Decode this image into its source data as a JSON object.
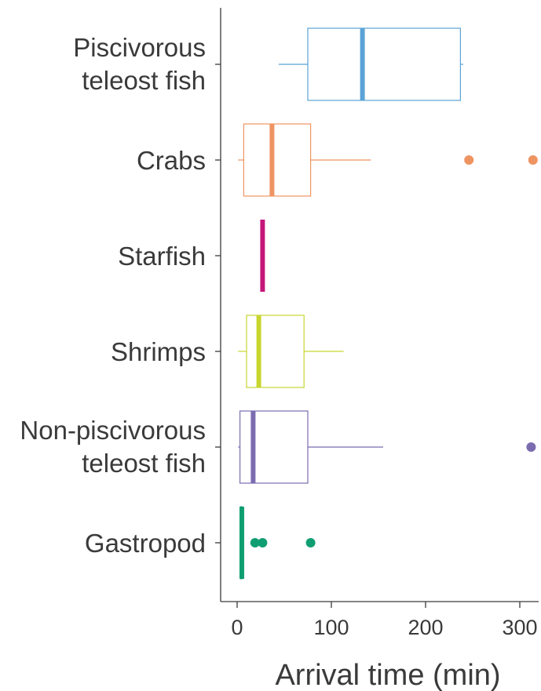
{
  "chart_data": {
    "type": "box",
    "orientation": "horizontal",
    "xlabel": "Arrival time (min)",
    "xlim": [
      -12,
      322
    ],
    "xticks": [
      0,
      100,
      200,
      300
    ],
    "grid": false,
    "categories": [
      {
        "label": [
          "Piscivorous",
          "teleost fish"
        ],
        "color": "#5aa3d6",
        "whisker_low": 44,
        "q1": 75,
        "median": 133,
        "q3": 237,
        "whisker_high": 240,
        "outliers": []
      },
      {
        "label": [
          "Crabs"
        ],
        "color": "#ee9461",
        "whisker_low": 1,
        "q1": 7,
        "median": 37,
        "q3": 78,
        "whisker_high": 142,
        "outliers": [
          246,
          314
        ]
      },
      {
        "label": [
          "Starfish"
        ],
        "color": "#c5177a",
        "whisker_low": 27,
        "q1": 27,
        "median": 27,
        "q3": 27,
        "whisker_high": 27,
        "outliers": []
      },
      {
        "label": [
          "Shrimps"
        ],
        "color": "#c8d630",
        "whisker_low": 1,
        "q1": 10,
        "median": 23,
        "q3": 71,
        "whisker_high": 113,
        "outliers": []
      },
      {
        "label": [
          "Non-piscivorous",
          "teleost fish"
        ],
        "color": "#7b6bb0",
        "whisker_low": 1,
        "q1": 3,
        "median": 17,
        "q3": 75,
        "whisker_high": 155,
        "outliers": [
          312
        ]
      },
      {
        "label": [
          "Gastropod"
        ],
        "color": "#0f9e72",
        "whisker_low": 4,
        "q1": 4,
        "median": 5,
        "q3": 5,
        "whisker_high": 5,
        "outliers": [
          19,
          27,
          78
        ]
      }
    ]
  }
}
